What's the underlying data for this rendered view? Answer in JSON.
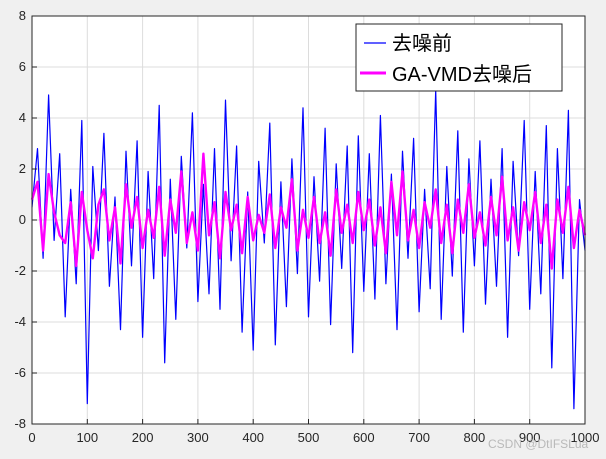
{
  "chart_data": {
    "type": "line",
    "xlim": [
      0,
      1000
    ],
    "ylim": [
      -8,
      8
    ],
    "x_ticks": [
      0,
      100,
      200,
      300,
      400,
      500,
      600,
      700,
      800,
      900,
      1000
    ],
    "y_ticks": [
      -8,
      -6,
      -4,
      -2,
      0,
      2,
      4,
      6,
      8
    ],
    "grid": true,
    "legend_position": "top-right",
    "series": [
      {
        "name": "去噪前",
        "color": "#0000ff",
        "x_step": 10,
        "values": [
          0.5,
          2.8,
          -1.5,
          4.9,
          -0.8,
          2.6,
          -3.8,
          1.2,
          -2.5,
          3.9,
          -7.2,
          2.1,
          -1.2,
          3.4,
          -2.6,
          0.9,
          -4.3,
          2.7,
          -1.8,
          3.1,
          -4.6,
          1.9,
          -2.3,
          4.5,
          -5.6,
          1.6,
          -3.9,
          2.5,
          -1.1,
          4.2,
          -3.2,
          1.4,
          -2.9,
          2.8,
          -3.5,
          4.7,
          -1.6,
          2.9,
          -4.4,
          1.1,
          -5.1,
          2.3,
          -0.9,
          3.8,
          -4.9,
          1.5,
          -3.4,
          2.4,
          -2.1,
          4.4,
          -3.8,
          1.7,
          -2.4,
          3.6,
          -4.1,
          2.2,
          -1.9,
          2.9,
          -5.2,
          3.3,
          -2.8,
          2.6,
          -3.1,
          4.1,
          -2.5,
          1.8,
          -4.3,
          2.7,
          -1.5,
          3.2,
          -3.6,
          1.2,
          -2.7,
          5.1,
          -3.9,
          2.1,
          -2.2,
          3.5,
          -4.4,
          2.4,
          -1.8,
          3.1,
          -3.3,
          1.6,
          -2.6,
          2.8,
          -4.6,
          2.3,
          -1.4,
          3.9,
          -3.5,
          1.9,
          -2.9,
          3.7,
          -5.8,
          2.8,
          -2.3,
          4.3,
          -7.4,
          0.8,
          -1.2
        ]
      },
      {
        "name": "GA-VMD去噪后",
        "color": "#ff00ff",
        "x_step": 10,
        "values": [
          0.8,
          1.5,
          -1.2,
          1.8,
          0.3,
          -0.6,
          -0.9,
          0.7,
          -1.8,
          1.1,
          -0.4,
          -1.5,
          0.6,
          1.2,
          -0.8,
          0.5,
          -1.7,
          1.4,
          -0.3,
          0.9,
          -1.1,
          0.4,
          -0.7,
          1.3,
          -1.4,
          0.8,
          -0.5,
          1.9,
          -0.9,
          0.3,
          -1.2,
          2.6,
          -0.6,
          0.7,
          -1.5,
          1.1,
          -0.4,
          0.6,
          -1.3,
          0.9,
          -0.8,
          0.2,
          -0.5,
          1.0,
          -1.1,
          0.5,
          -0.3,
          1.6,
          -1.2,
          0.4,
          -0.7,
          0.9,
          -0.9,
          0.3,
          -1.4,
          1.2,
          -0.5,
          0.6,
          -0.9,
          1.1,
          -0.4,
          0.8,
          -1.0,
          0.5,
          -1.3,
          1.5,
          -0.6,
          1.9,
          -0.8,
          0.4,
          -1.1,
          0.7,
          -0.3,
          1.2,
          -0.9,
          0.6,
          -1.3,
          0.8,
          -0.5,
          1.4,
          -0.7,
          0.3,
          -1.0,
          0.9,
          -0.6,
          1.7,
          -0.8,
          0.5,
          -1.2,
          0.7,
          -0.4,
          1.1,
          -0.9,
          0.6,
          -1.9,
          0.8,
          -0.5,
          1.3,
          -1.1,
          0.4,
          -0.6
        ]
      }
    ]
  },
  "watermark": "CSDN @DtIFSLua"
}
